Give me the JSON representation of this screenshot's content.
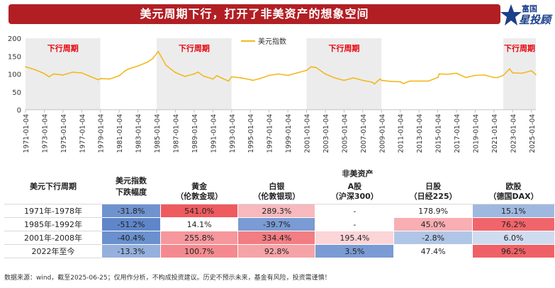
{
  "banner": {
    "title": "美元周期下行，打开了非美资产的想象空间"
  },
  "logo": {
    "line1": "富国",
    "line2": "星投顾"
  },
  "chart_data": {
    "type": "line",
    "series": [
      {
        "name": "美元指数",
        "x": [
          "1971-01-04",
          "1972-01-04",
          "1973-01-04",
          "1973-07-04",
          "1974-01-04",
          "1975-01-04",
          "1976-01-04",
          "1977-01-04",
          "1978-01-04",
          "1978-10-04",
          "1979-01-04",
          "1980-01-04",
          "1981-01-04",
          "1981-08-04",
          "1982-01-04",
          "1983-01-04",
          "1984-01-04",
          "1984-08-04",
          "1985-03-04",
          "1986-01-04",
          "1987-01-04",
          "1988-01-04",
          "1989-01-04",
          "1989-06-04",
          "1990-01-04",
          "1991-01-04",
          "1991-06-04",
          "1992-01-04",
          "1992-09-04",
          "1993-01-04",
          "1994-01-04",
          "1995-01-04",
          "1995-04-04",
          "1996-01-04",
          "1997-01-04",
          "1998-01-04",
          "1999-01-04",
          "2000-01-04",
          "2001-01-04",
          "2001-07-04",
          "2002-01-04",
          "2003-01-04",
          "2004-01-04",
          "2005-01-04",
          "2006-01-04",
          "2007-01-04",
          "2008-01-04",
          "2008-04-04",
          "2008-11-04",
          "2009-01-04",
          "2010-01-04",
          "2011-01-04",
          "2011-05-04",
          "2012-01-04",
          "2013-01-04",
          "2014-01-04",
          "2015-01-04",
          "2015-03-04",
          "2016-01-04",
          "2017-01-04",
          "2018-01-04",
          "2019-01-04",
          "2020-01-04",
          "2021-01-04",
          "2021-06-04",
          "2022-01-04",
          "2022-09-04",
          "2023-01-04",
          "2024-01-04",
          "2025-01-04",
          "2025-06-25"
        ],
        "values": [
          120,
          112,
          101,
          92,
          100,
          97,
          105,
          103,
          92,
          84,
          87,
          86,
          95,
          108,
          114,
          122,
          133,
          143,
          163,
          124,
          104,
          93,
          100,
          105,
          94,
          86,
          95,
          88,
          80,
          92,
          89,
          84,
          82,
          87,
          96,
          100,
          96,
          103,
          110,
          120,
          118,
          100,
          89,
          82,
          89,
          82,
          77,
          72,
          86,
          82,
          79,
          78,
          73,
          80,
          80,
          80,
          90,
          100,
          99,
          102,
          90,
          96,
          97,
          90,
          90,
          96,
          114,
          103,
          102,
          109,
          98
        ]
      }
    ],
    "ylim": [
      0,
      200
    ],
    "yticks": [
      0,
      50,
      100,
      150,
      200
    ],
    "xticks": [
      "1971-01-04",
      "1973-01-04",
      "1975-01-04",
      "1977-01-04",
      "1979-01-04",
      "1981-01-04",
      "1983-01-04",
      "1985-01-04",
      "1987-01-04",
      "1989-01-04",
      "1991-01-04",
      "1993-01-04",
      "1995-01-04",
      "1997-01-04",
      "1999-01-04",
      "2001-01-04",
      "2003-01-04",
      "2005-01-04",
      "2007-01-04",
      "2009-01-04",
      "2011-01-04",
      "2013-01-04",
      "2015-01-04",
      "2017-01-04",
      "2019-01-04",
      "2021-01-04",
      "2023-01-04",
      "2025-01-04"
    ],
    "legend_position": "top-center",
    "shaded_periods": [
      {
        "label": "下行周期",
        "start": "1971-01-04",
        "end": "1978-12-31"
      },
      {
        "label": "下行周期",
        "start": "1985-01-04",
        "end": "1992-12-31"
      },
      {
        "label": "下行周期",
        "start": "2001-01-04",
        "end": "2008-12-31"
      },
      {
        "label": "下行周期",
        "start": "2022-01-04",
        "end": "2025-06-25"
      }
    ],
    "line_color": "#f2b81d",
    "shade_color": "#ececec",
    "shade_label_color": "#e8000b",
    "grid": false
  },
  "table": {
    "group_header": "非美资产",
    "col0": "美元下行周期",
    "col1": [
      "美元指数",
      "下跌幅度"
    ],
    "columns": [
      [
        "黄金",
        "（伦敦金现）"
      ],
      [
        "白银",
        "（伦敦银现）"
      ],
      [
        "A股",
        "（沪深300）"
      ],
      [
        "日股",
        "（日经225）"
      ],
      [
        "欧股",
        "（德国DAX）"
      ]
    ],
    "rows": [
      {
        "period": "1971年-1978年",
        "dxy": "-31.8%",
        "cells": [
          "541.0%",
          "289.3%",
          "-",
          "178.9%",
          "15.1%"
        ]
      },
      {
        "period": "1985年-1992年",
        "dxy": "-51.2%",
        "cells": [
          "14.1%",
          "-39.7%",
          "-",
          "45.0%",
          "76.2%"
        ]
      },
      {
        "period": "2001年-2008年",
        "dxy": "-40.4%",
        "cells": [
          "255.8%",
          "334.4%",
          "195.4%",
          "-2.8%",
          "6.0%"
        ]
      },
      {
        "period": "2022年至今",
        "dxy": "-13.3%",
        "cells": [
          "100.7%",
          "92.8%",
          "3.5%",
          "47.4%",
          "96.2%"
        ]
      }
    ],
    "colors": {
      "dxy": [
        "#6f93cf",
        "#5f86c9",
        "#6a90cd",
        "#95b0dc"
      ],
      "cells": [
        [
          "#ef5a5f",
          "#f7b9bd",
          "#ffffff",
          "#ffffff",
          "#9fb8e0"
        ],
        [
          "#ffffff",
          "#7a9bd3",
          "#ffffff",
          "#f8aeb2",
          "#f0656b"
        ],
        [
          "#f5979c",
          "#f27d82",
          "#fbd5d7",
          "#b1c6e6",
          "#cfdbef"
        ],
        [
          "#f48a8f",
          "#f6a3a7",
          "#7a9bd3",
          "#ffffff",
          "#ef6166"
        ]
      ]
    }
  },
  "footer": "数据来源：wind，截至2025-06-25；仅用作分析，不构成投资建议。历史不预示未来，基金有风险，投资需谨慎！"
}
